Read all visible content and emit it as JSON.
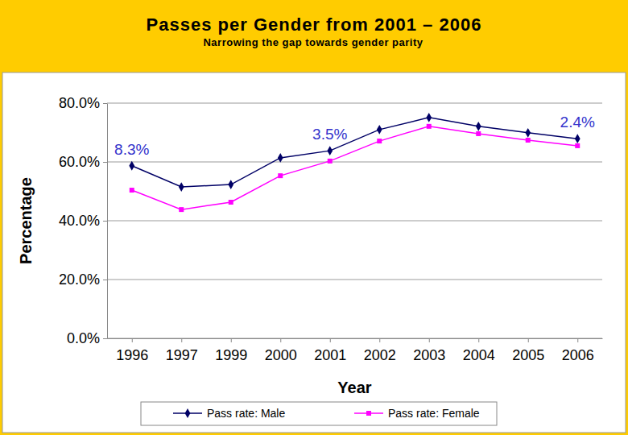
{
  "chart_data": {
    "type": "line",
    "title": "Passes per  Gender from 2001 – 2006",
    "subtitle": "Narrowing the gap towards gender parity",
    "x_label": "Year",
    "y_label": "Percentage",
    "categories": [
      "1996",
      "1997",
      "1999",
      "2000",
      "2001",
      "2002",
      "2003",
      "2004",
      "2005",
      "2006"
    ],
    "series": [
      {
        "name": "Pass rate: Male",
        "color": "#000066",
        "marker": "diamond",
        "values": [
          58.7,
          51.5,
          52.3,
          61.4,
          63.8,
          71.0,
          75.1,
          72.1,
          69.9,
          67.9
        ]
      },
      {
        "name": "Pass rate: Female",
        "color": "#FF00FF",
        "marker": "square",
        "values": [
          50.4,
          43.8,
          46.3,
          55.3,
          60.3,
          67.1,
          72.1,
          69.6,
          67.4,
          65.5
        ]
      }
    ],
    "ylim": [
      0,
      80
    ],
    "yticks": [
      {
        "value": 0,
        "label": "0.0%"
      },
      {
        "value": 20,
        "label": "20.0%"
      },
      {
        "value": 40,
        "label": "40.0%"
      },
      {
        "value": 60,
        "label": "60.0%"
      },
      {
        "value": 80,
        "label": "80.0%"
      }
    ],
    "grid": true,
    "legend": "bottom",
    "annotations": [
      {
        "text": "8.3%",
        "category": "1996"
      },
      {
        "text": "3.5%",
        "category": "2001"
      },
      {
        "text": "2.4%",
        "category": "2006"
      }
    ]
  }
}
